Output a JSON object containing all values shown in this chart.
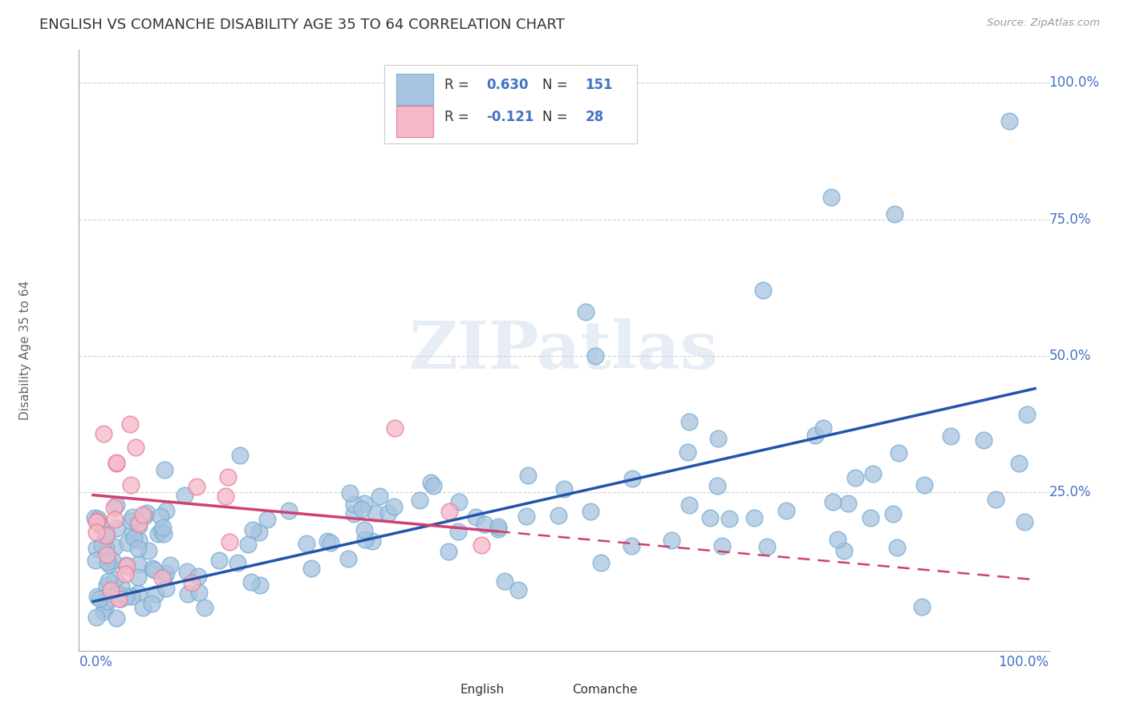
{
  "title": "ENGLISH VS COMANCHE DISABILITY AGE 35 TO 64 CORRELATION CHART",
  "source": "Source: ZipAtlas.com",
  "ylabel": "Disability Age 35 to 64",
  "english_R": 0.63,
  "english_N": 151,
  "comanche_R": -0.121,
  "comanche_N": 28,
  "english_color": "#a8c4e0",
  "english_edge_color": "#7aafd4",
  "english_line_color": "#2255aa",
  "comanche_color": "#f5b8c8",
  "comanche_edge_color": "#e8809a",
  "comanche_line_color": "#d04070",
  "watermark": "ZIPatlas",
  "background_color": "#ffffff",
  "grid_color": "#cccccc",
  "title_color": "#333333",
  "axis_label_color": "#4472c4",
  "english_seed": 42,
  "comanche_seed": 7
}
